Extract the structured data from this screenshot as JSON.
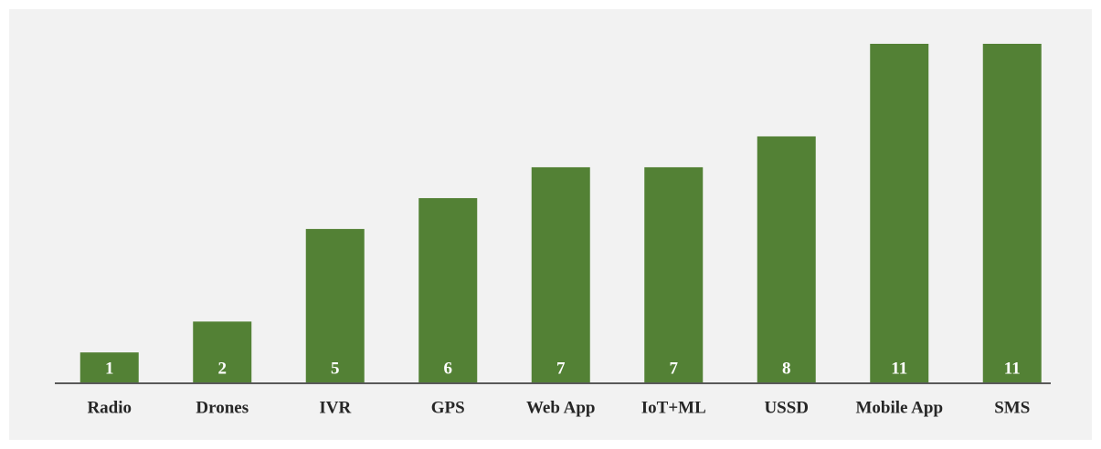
{
  "chart_data": {
    "type": "bar",
    "categories": [
      "Radio",
      "Drones",
      "IVR",
      "GPS",
      "Web App",
      "IoT+ML",
      "USSD",
      "Mobile App",
      "SMS"
    ],
    "values": [
      1,
      2,
      5,
      6,
      7,
      7,
      8,
      11,
      11
    ],
    "color": "#538135",
    "ylim": [
      0,
      11
    ]
  }
}
